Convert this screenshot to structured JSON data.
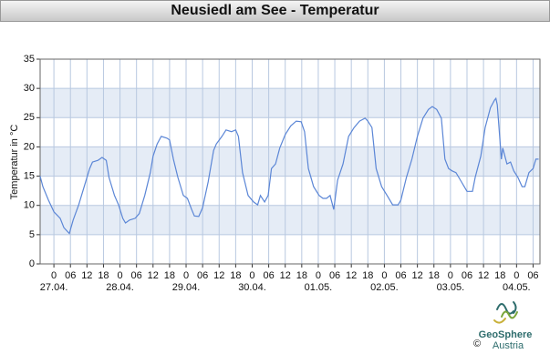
{
  "chart_data": {
    "type": "line",
    "title": "Neusiedl am See - Temperatur",
    "y_label": "Temperatur in °C",
    "color": "#5b86d6",
    "grid": true,
    "bands": true,
    "x": [
      -5,
      -4,
      -2,
      0,
      2.3,
      3.6,
      5.6,
      7,
      9,
      11,
      13,
      14,
      16,
      17.5,
      19,
      20,
      22,
      23.5,
      25,
      26,
      27.5,
      29.5,
      31,
      33,
      35,
      36,
      37.5,
      39,
      41,
      42,
      43.4,
      45,
      47,
      48.5,
      50,
      51,
      52.6,
      54,
      56,
      58,
      59,
      61,
      62.5,
      64.5,
      66,
      67,
      68.5,
      70.5,
      72.5,
      74,
      75,
      76.5,
      77.8,
      79,
      80.5,
      82,
      84,
      86,
      88,
      89.8,
      91,
      92.4,
      94.3,
      96.3,
      97.7,
      99,
      100.3,
      101.6,
      103,
      105,
      107,
      109,
      111,
      113,
      114,
      115.5,
      117,
      119,
      121,
      123,
      125,
      126,
      128,
      130,
      132,
      134,
      136,
      137.4,
      139,
      140.7,
      142,
      143.3,
      144.6,
      146,
      148,
      150,
      152,
      153,
      155,
      156.6,
      158.5,
      160,
      160.5,
      161,
      162.5,
      163,
      164.5,
      165.8,
      167,
      168.5,
      170,
      171,
      172.5,
      174,
      175,
      176
    ],
    "values": [
      15,
      13.2,
      10.9,
      8.9,
      7.8,
      6.2,
      5.2,
      7.5,
      10.1,
      13.2,
      16.3,
      17.4,
      17.7,
      18.2,
      17.7,
      14.8,
      11.7,
      10.1,
      7.8,
      7,
      7.5,
      7.8,
      8.6,
      11.7,
      15.6,
      18.4,
      20.5,
      21.8,
      21.5,
      21.2,
      17.9,
      14.8,
      11.7,
      11.2,
      9.3,
      8.2,
      8.1,
      9.6,
      14,
      19.4,
      20.5,
      21.8,
      22.9,
      22.6,
      22.9,
      21.8,
      15.6,
      11.7,
      10.6,
      10.1,
      11.7,
      10.6,
      11.7,
      16.3,
      17.1,
      19.8,
      22.1,
      23.6,
      24.4,
      24.3,
      22.6,
      16.3,
      13.2,
      11.7,
      11.2,
      11.2,
      11.7,
      9.3,
      14.3,
      17.1,
      21.8,
      23.3,
      24.4,
      24.9,
      24.4,
      23.3,
      16.3,
      13.2,
      11.7,
      10.1,
      10.1,
      10.9,
      14.8,
      17.9,
      21.8,
      24.9,
      26.4,
      26.9,
      26.4,
      24.9,
      17.9,
      16.3,
      15.9,
      15.6,
      14,
      12.4,
      12.4,
      14.8,
      18.4,
      23.3,
      26.7,
      28,
      28.3,
      27.2,
      17.9,
      19.8,
      17.1,
      17.4,
      15.9,
      14.8,
      13.2,
      13.2,
      15.6,
      16.3,
      17.9,
      17.9
    ],
    "xlim": [
      -5,
      176.5
    ],
    "ylim": [
      0,
      35
    ],
    "yticks": [
      0,
      5,
      10,
      15,
      20,
      25,
      30,
      35
    ],
    "xticks": [
      0,
      {
        "value": 6,
        "label": "06"
      },
      {
        "value": 12,
        "label": "12"
      },
      {
        "value": 18,
        "label": "18"
      },
      {
        "value": 24,
        "label": "0"
      },
      {
        "value": 30,
        "label": "06"
      },
      {
        "value": 36,
        "label": "12"
      },
      {
        "value": 42,
        "label": "18"
      },
      {
        "value": 48,
        "label": "0"
      },
      {
        "value": 54,
        "label": "06"
      },
      {
        "value": 60,
        "label": "12"
      },
      {
        "value": 66,
        "label": "18"
      },
      {
        "value": 72,
        "label": "0"
      },
      {
        "value": 78,
        "label": "06"
      },
      {
        "value": 84,
        "label": "12"
      },
      {
        "value": 90,
        "label": "18"
      },
      {
        "value": 96,
        "label": "0"
      },
      {
        "value": 102,
        "label": "06"
      },
      {
        "value": 108,
        "label": "12"
      },
      {
        "value": 114,
        "label": "18"
      },
      {
        "value": 120,
        "label": "0"
      },
      {
        "value": 126,
        "label": "06"
      },
      {
        "value": 132,
        "label": "12"
      },
      {
        "value": 138,
        "label": "18"
      },
      {
        "value": 144,
        "label": "0"
      },
      {
        "value": 150,
        "label": "06"
      },
      {
        "value": 156,
        "label": "12"
      },
      {
        "value": 162,
        "label": "18"
      },
      {
        "value": 168,
        "label": "0"
      },
      {
        "value": 174,
        "label": "06"
      }
    ],
    "day_labels": [
      {
        "value": 0,
        "label": "27.04."
      },
      {
        "value": 24,
        "label": "28.04."
      },
      {
        "value": 48,
        "label": "29.04."
      },
      {
        "value": 72,
        "label": "30.04."
      },
      {
        "value": 96,
        "label": "01.05."
      },
      {
        "value": 120,
        "label": "02.05."
      },
      {
        "value": 144,
        "label": "03.05."
      },
      {
        "value": 168,
        "label": "04.05."
      }
    ]
  },
  "logo": {
    "name": "GeoSphere",
    "sub": "Austria",
    "copyright": "©"
  }
}
